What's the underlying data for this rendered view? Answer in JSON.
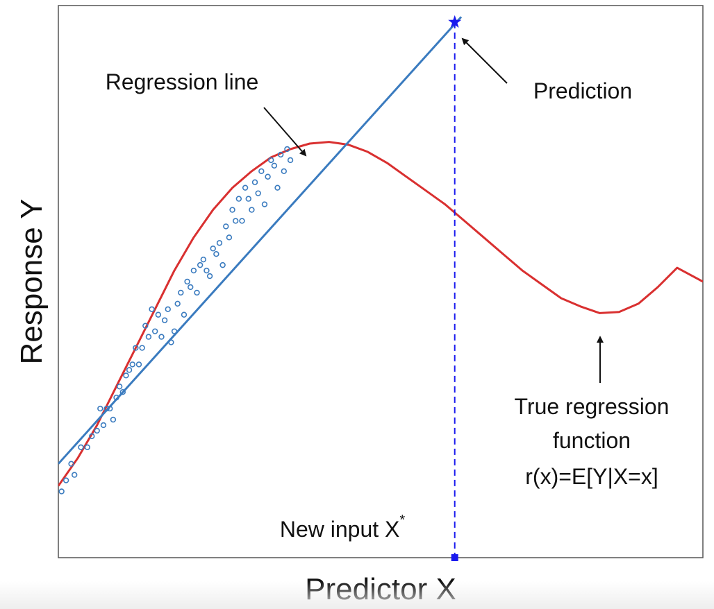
{
  "chart_data": {
    "type": "scatter",
    "xlabel": "Predictor X",
    "ylabel": "Response Y",
    "xlim": [
      0,
      100
    ],
    "ylim": [
      0,
      100
    ],
    "ticks": false,
    "grid": false,
    "colors": {
      "points": "#3a7bbf",
      "regression_line": "#3a7bbf",
      "true_function": "#d93030",
      "prediction": "#1a1aee",
      "axis": "#555555",
      "text": "#111111"
    },
    "regression_line": {
      "name": "Regression line",
      "slope": 1.295,
      "intercept": 17.0,
      "x_start": 0,
      "x_end": 62.5
    },
    "true_function": {
      "name": "True regression function",
      "x": [
        0,
        3,
        6,
        9,
        12,
        15,
        18,
        21,
        24,
        27,
        30,
        33,
        36,
        39,
        42,
        45,
        48,
        51,
        54,
        57,
        60,
        63,
        66,
        69,
        72,
        75,
        78,
        81,
        84,
        87,
        90,
        93,
        96,
        100
      ],
      "y": [
        13,
        18,
        24,
        31,
        38,
        45,
        52,
        58,
        63,
        67,
        70,
        72.5,
        74,
        75,
        75.3,
        74.8,
        73.5,
        71.5,
        69,
        66.5,
        64,
        61,
        58,
        55,
        52,
        49.5,
        47,
        45.5,
        44.3,
        44.5,
        46,
        49,
        52.5,
        50
      ]
    },
    "points": {
      "x": [
        0.5,
        1.2,
        2.0,
        2.5,
        3.5,
        4.5,
        5.2,
        6.0,
        6.5,
        7.0,
        7.5,
        8.0,
        8.5,
        9.0,
        9.5,
        10.0,
        10.5,
        11.0,
        11.5,
        12.0,
        12.5,
        13.0,
        13.5,
        14.0,
        14.5,
        15.0,
        15.5,
        16.0,
        16.5,
        17.0,
        17.5,
        18.0,
        18.5,
        19.0,
        19.5,
        20.0,
        20.5,
        21.0,
        21.5,
        22.0,
        22.5,
        23.0,
        23.5,
        24.0,
        24.5,
        25.0,
        25.5,
        26.0,
        26.5,
        27.0,
        27.5,
        28.0,
        28.5,
        29.0,
        29.5,
        30.0,
        30.5,
        31.0,
        31.5,
        32.0,
        32.5,
        33.0,
        33.5,
        34.0,
        34.5,
        35.0,
        35.5,
        36.0
      ],
      "y": [
        12,
        14,
        17,
        15,
        20,
        20,
        22,
        23,
        27,
        24,
        27,
        27,
        25,
        29,
        31,
        30,
        33,
        34,
        35,
        38,
        35,
        38,
        42,
        40,
        45,
        41,
        44,
        40,
        43,
        45,
        39,
        41,
        46,
        48,
        44,
        50,
        49,
        52,
        48,
        53,
        54,
        52,
        51,
        56,
        55,
        57,
        53,
        60,
        58,
        63,
        61,
        65,
        61,
        67,
        65,
        63,
        68,
        66,
        70,
        64,
        69,
        72,
        71,
        67,
        73,
        70,
        74,
        72
      ]
    },
    "new_input": {
      "x": 61.5
    },
    "prediction": {
      "x": 61.5,
      "y": 97
    },
    "annotations": [
      {
        "text": "Regression line"
      },
      {
        "text": "Prediction"
      },
      {
        "text": "True regression",
        "line2": "function",
        "line3": "r(x)=E[Y|X=x]"
      },
      {
        "text": "New input X",
        "sup": "*"
      }
    ]
  }
}
